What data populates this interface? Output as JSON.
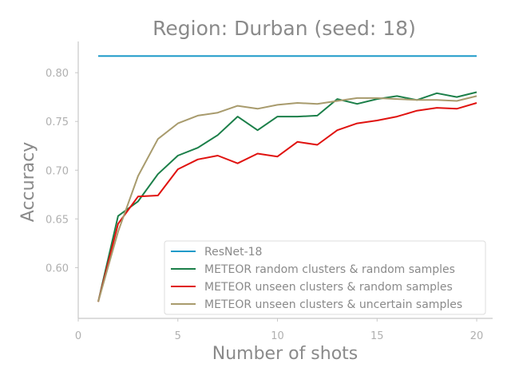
{
  "chart_data": {
    "type": "line",
    "title": "Region: Durban (seed: 18)",
    "xlabel": "Number of shots",
    "ylabel": "Accuracy",
    "xlim": [
      0,
      20.8
    ],
    "ylim": [
      0.548,
      0.832
    ],
    "xticks": [
      0,
      5,
      10,
      15,
      20
    ],
    "xtick_labels": [
      "0",
      "5",
      "10",
      "15",
      "20"
    ],
    "yticks": [
      0.6,
      0.65,
      0.7,
      0.75,
      0.8
    ],
    "ytick_labels": [
      "0.60",
      "0.65",
      "0.70",
      "0.75",
      "0.80"
    ],
    "grid": false,
    "legend_position": "lower-right",
    "x": [
      1,
      2,
      3,
      4,
      5,
      6,
      7,
      8,
      9,
      10,
      11,
      12,
      13,
      14,
      15,
      16,
      17,
      18,
      19,
      20
    ],
    "series": [
      {
        "name": "ResNet-18",
        "color": "#1f9ac9",
        "values": [
          0.817,
          0.817,
          0.817,
          0.817,
          0.817,
          0.817,
          0.817,
          0.817,
          0.817,
          0.817,
          0.817,
          0.817,
          0.817,
          0.817,
          0.817,
          0.817,
          0.817,
          0.817,
          0.817,
          0.817
        ]
      },
      {
        "name": "METEOR random clusters & random samples",
        "color": "#1b7f49",
        "values": [
          0.565,
          0.653,
          0.668,
          0.696,
          0.715,
          0.723,
          0.736,
          0.755,
          0.741,
          0.755,
          0.755,
          0.756,
          0.773,
          0.768,
          0.773,
          0.776,
          0.772,
          0.779,
          0.775,
          0.78
        ]
      },
      {
        "name": "METEOR unseen clusters & random samples",
        "color": "#e0120f",
        "values": [
          0.565,
          0.645,
          0.673,
          0.674,
          0.701,
          0.711,
          0.715,
          0.707,
          0.717,
          0.714,
          0.729,
          0.726,
          0.741,
          0.748,
          0.751,
          0.755,
          0.761,
          0.764,
          0.763,
          0.769
        ]
      },
      {
        "name": "METEOR unseen clusters & uncertain samples",
        "color": "#a89b6d",
        "values": [
          0.565,
          0.637,
          0.694,
          0.732,
          0.748,
          0.756,
          0.759,
          0.766,
          0.763,
          0.767,
          0.769,
          0.768,
          0.771,
          0.774,
          0.774,
          0.773,
          0.772,
          0.772,
          0.771,
          0.776
        ]
      }
    ]
  }
}
